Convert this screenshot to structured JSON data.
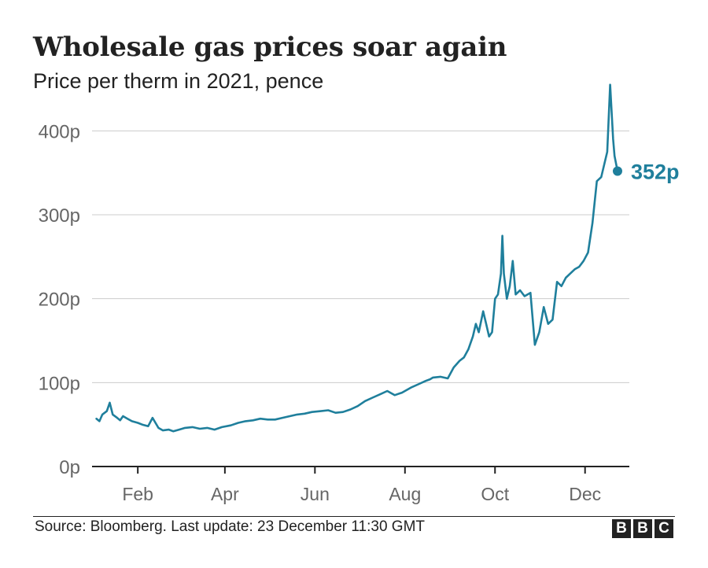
{
  "chart_data": {
    "type": "line",
    "title": "Wholesale gas prices soar again",
    "subtitle": "Price per therm in 2021, pence",
    "xlabel": "",
    "ylabel": "",
    "ylim": [
      0,
      450
    ],
    "yticks": [
      0,
      100,
      200,
      300,
      400
    ],
    "ytick_labels": [
      "0p",
      "100p",
      "200p",
      "300p",
      "400p"
    ],
    "xlim": [
      "2021-01-01",
      "2021-12-31"
    ],
    "xticks": [
      "2021-02-01",
      "2021-04-01",
      "2021-06-01",
      "2021-08-01",
      "2021-10-01",
      "2021-12-01"
    ],
    "xtick_labels": [
      "Feb",
      "Apr",
      "Jun",
      "Aug",
      "Oct",
      "Dec"
    ],
    "grid": true,
    "line_color": "#1f7f9c",
    "end_label": "352p",
    "series": [
      {
        "x": [
          "2021-01-04",
          "2021-01-06",
          "2021-01-08",
          "2021-01-11",
          "2021-01-13",
          "2021-01-15",
          "2021-01-18",
          "2021-01-20",
          "2021-01-22",
          "2021-01-25",
          "2021-01-28",
          "2021-02-01",
          "2021-02-04",
          "2021-02-08",
          "2021-02-11",
          "2021-02-15",
          "2021-02-18",
          "2021-02-22",
          "2021-02-25",
          "2021-03-01",
          "2021-03-05",
          "2021-03-10",
          "2021-03-15",
          "2021-03-20",
          "2021-03-25",
          "2021-03-30",
          "2021-04-05",
          "2021-04-10",
          "2021-04-15",
          "2021-04-20",
          "2021-04-25",
          "2021-04-30",
          "2021-05-05",
          "2021-05-10",
          "2021-05-15",
          "2021-05-20",
          "2021-05-25",
          "2021-05-30",
          "2021-06-05",
          "2021-06-10",
          "2021-06-15",
          "2021-06-20",
          "2021-06-25",
          "2021-06-30",
          "2021-07-05",
          "2021-07-10",
          "2021-07-15",
          "2021-07-20",
          "2021-07-25",
          "2021-07-30",
          "2021-08-05",
          "2021-08-10",
          "2021-08-15",
          "2021-08-18",
          "2021-08-20",
          "2021-08-25",
          "2021-08-30",
          "2021-09-03",
          "2021-09-07",
          "2021-09-10",
          "2021-09-13",
          "2021-09-16",
          "2021-09-18",
          "2021-09-20",
          "2021-09-23",
          "2021-09-25",
          "2021-09-27",
          "2021-09-29",
          "2021-10-01",
          "2021-10-03",
          "2021-10-05",
          "2021-10-06",
          "2021-10-07",
          "2021-10-09",
          "2021-10-11",
          "2021-10-13",
          "2021-10-15",
          "2021-10-18",
          "2021-10-21",
          "2021-10-25",
          "2021-10-28",
          "2021-10-31",
          "2021-11-03",
          "2021-11-06",
          "2021-11-09",
          "2021-11-12",
          "2021-11-15",
          "2021-11-18",
          "2021-11-21",
          "2021-11-24",
          "2021-11-27",
          "2021-11-30",
          "2021-12-03",
          "2021-12-06",
          "2021-12-09",
          "2021-12-12",
          "2021-12-14",
          "2021-12-16",
          "2021-12-18",
          "2021-12-20",
          "2021-12-21",
          "2021-12-23"
        ],
        "values": [
          57,
          54,
          62,
          66,
          76,
          62,
          58,
          55,
          60,
          57,
          54,
          52,
          50,
          48,
          58,
          46,
          43,
          44,
          42,
          44,
          46,
          47,
          45,
          46,
          44,
          47,
          49,
          52,
          54,
          55,
          57,
          56,
          56,
          58,
          60,
          62,
          63,
          65,
          66,
          67,
          64,
          65,
          68,
          72,
          78,
          82,
          86,
          90,
          85,
          88,
          94,
          98,
          102,
          104,
          106,
          107,
          105,
          118,
          126,
          130,
          140,
          155,
          170,
          160,
          185,
          170,
          155,
          160,
          200,
          205,
          230,
          275,
          230,
          200,
          215,
          245,
          205,
          210,
          203,
          207,
          145,
          160,
          190,
          170,
          175,
          220,
          215,
          225,
          230,
          235,
          238,
          245,
          255,
          290,
          340,
          345,
          360,
          375,
          455,
          390,
          370,
          352
        ]
      }
    ]
  },
  "source": "Source: Bloomberg. Last update: 23 December 11:30 GMT",
  "brand_letters": [
    "B",
    "B",
    "C"
  ]
}
